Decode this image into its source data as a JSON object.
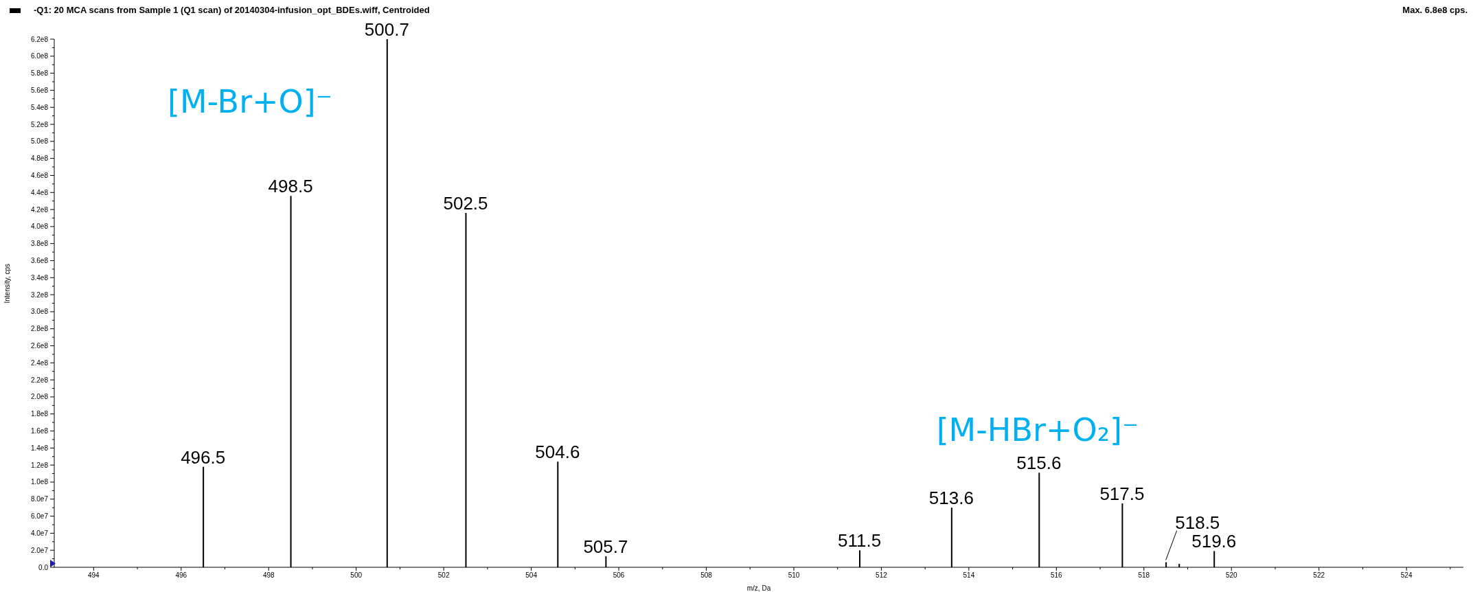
{
  "chart_data": {
    "type": "bar",
    "title": "-Q1: 20 MCA scans from Sample 1 (Q1 scan) of 20140304-infusion_opt_BDEs.wiff, Centroided",
    "subtitle": "Max. 6.8e8 cps.",
    "xlabel": "m/z, Da",
    "ylabel": "Intensity, cps",
    "x": [
      496.5,
      498.5,
      500.7,
      502.5,
      504.6,
      505.7,
      511.5,
      513.6,
      515.6,
      517.5,
      518.5,
      518.8,
      519.6
    ],
    "values": [
      118000000,
      436000000,
      620000000,
      416000000,
      124000000,
      13000000,
      20000000,
      70000000,
      111000000,
      75000000,
      6000000,
      4000000,
      19000000
    ],
    "color": "#000000",
    "xlim": [
      493.1,
      525.3
    ],
    "xticks": [
      494,
      {
        "value": 495,
        "label": null
      },
      496,
      {
        "value": 497,
        "label": null
      },
      498,
      {
        "value": 499,
        "label": null
      },
      500,
      {
        "value": 501,
        "label": null
      },
      502,
      {
        "value": 503,
        "label": null
      },
      504,
      {
        "value": 505,
        "label": null
      },
      506,
      {
        "value": 507,
        "label": null
      },
      508,
      {
        "value": 509,
        "label": null
      },
      510,
      {
        "value": 511,
        "label": null
      },
      512,
      {
        "value": 513,
        "label": null
      },
      514,
      {
        "value": 515,
        "label": null
      },
      516,
      {
        "value": 517,
        "label": null
      },
      518,
      {
        "value": 519,
        "label": null
      },
      520,
      {
        "value": 521,
        "label": null
      },
      522,
      {
        "value": 523,
        "label": null
      },
      524,
      {
        "value": 525,
        "label": null
      }
    ],
    "ylim": [
      0,
      620000000
    ],
    "yticks": [
      {
        "value": 0,
        "label": "0.0"
      },
      {
        "value": 10000000,
        "label": null
      },
      {
        "value": 20000000,
        "label": "2.0e7"
      },
      {
        "value": 30000000,
        "label": null
      },
      {
        "value": 40000000,
        "label": "4.0e7"
      },
      {
        "value": 50000000,
        "label": null
      },
      {
        "value": 60000000,
        "label": "6.0e7"
      },
      {
        "value": 70000000,
        "label": null
      },
      {
        "value": 80000000,
        "label": "8.0e7"
      },
      {
        "value": 90000000,
        "label": null
      },
      {
        "value": 100000000,
        "label": "1.0e8"
      },
      {
        "value": 110000000,
        "label": null
      },
      {
        "value": 120000000,
        "label": "1.2e8"
      },
      {
        "value": 130000000,
        "label": null
      },
      {
        "value": 140000000,
        "label": "1.4e8"
      },
      {
        "value": 150000000,
        "label": null
      },
      {
        "value": 160000000,
        "label": "1.6e8"
      },
      {
        "value": 170000000,
        "label": null
      },
      {
        "value": 180000000,
        "label": "1.8e8"
      },
      {
        "value": 190000000,
        "label": null
      },
      {
        "value": 200000000,
        "label": "2.0e8"
      },
      {
        "value": 210000000,
        "label": null
      },
      {
        "value": 220000000,
        "label": "2.2e8"
      },
      {
        "value": 230000000,
        "label": null
      },
      {
        "value": 240000000,
        "label": "2.4e8"
      },
      {
        "value": 250000000,
        "label": null
      },
      {
        "value": 260000000,
        "label": "2.6e8"
      },
      {
        "value": 270000000,
        "label": null
      },
      {
        "value": 280000000,
        "label": "2.8e8"
      },
      {
        "value": 290000000,
        "label": null
      },
      {
        "value": 300000000,
        "label": "3.0e8"
      },
      {
        "value": 310000000,
        "label": null
      },
      {
        "value": 320000000,
        "label": "3.2e8"
      },
      {
        "value": 330000000,
        "label": null
      },
      {
        "value": 340000000,
        "label": "3.4e8"
      },
      {
        "value": 350000000,
        "label": null
      },
      {
        "value": 360000000,
        "label": "3.6e8"
      },
      {
        "value": 370000000,
        "label": null
      },
      {
        "value": 380000000,
        "label": "3.8e8"
      },
      {
        "value": 390000000,
        "label": null
      },
      {
        "value": 400000000,
        "label": "4.0e8"
      },
      {
        "value": 410000000,
        "label": null
      },
      {
        "value": 420000000,
        "label": "4.2e8"
      },
      {
        "value": 430000000,
        "label": null
      },
      {
        "value": 440000000,
        "label": "4.4e8"
      },
      {
        "value": 450000000,
        "label": null
      },
      {
        "value": 460000000,
        "label": "4.6e8"
      },
      {
        "value": 470000000,
        "label": null
      },
      {
        "value": 480000000,
        "label": "4.8e8"
      },
      {
        "value": 490000000,
        "label": null
      },
      {
        "value": 500000000,
        "label": "5.0e8"
      },
      {
        "value": 510000000,
        "label": null
      },
      {
        "value": 520000000,
        "label": "5.2e8"
      },
      {
        "value": 530000000,
        "label": null
      },
      {
        "value": 540000000,
        "label": "5.4e8"
      },
      {
        "value": 550000000,
        "label": null
      },
      {
        "value": 560000000,
        "label": "5.6e8"
      },
      {
        "value": 570000000,
        "label": null
      },
      {
        "value": 580000000,
        "label": "5.8e8"
      },
      {
        "value": 590000000,
        "label": null
      },
      {
        "value": 600000000,
        "label": "6.0e8"
      },
      {
        "value": 610000000,
        "label": null
      },
      {
        "value": 620000000,
        "label": "6.2e8"
      }
    ],
    "annotations": [
      "[M-Br+O]⁻",
      "[M-HBr+O₂]⁻",
      {
        "text": "496.5",
        "x": 496.5,
        "y": 118000000
      },
      {
        "text": "498.5",
        "x": 498.5,
        "y": 436000000
      },
      {
        "text": "500.7",
        "x": 500.7,
        "y": 620000000
      },
      {
        "text": "502.5",
        "x": 502.5,
        "y": 416000000
      },
      {
        "text": "504.6",
        "x": 504.6,
        "y": 124000000
      },
      {
        "text": "505.7",
        "x": 505.7,
        "y": 13000000
      },
      {
        "text": "511.5",
        "x": 511.5,
        "y": 20000000
      },
      {
        "text": "513.6",
        "x": 513.6,
        "y": 70000000
      },
      {
        "text": "515.6",
        "x": 515.6,
        "y": 111000000
      },
      {
        "text": "517.5",
        "x": 517.5,
        "y": 75000000
      },
      {
        "text": "518.5",
        "x": 518.5,
        "y": 6000000
      },
      {
        "text": "519.6",
        "x": 519.6,
        "y": 19000000
      }
    ]
  }
}
